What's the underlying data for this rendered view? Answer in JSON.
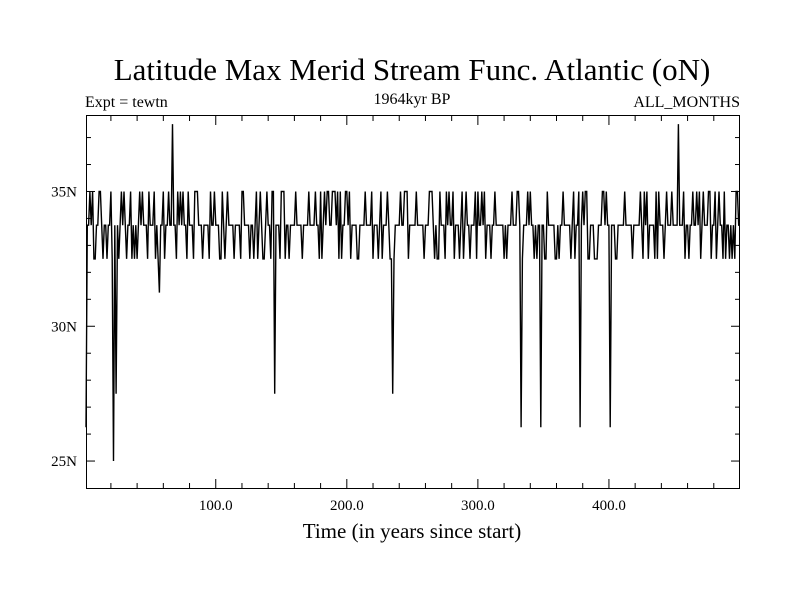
{
  "chart_data": {
    "type": "line",
    "title": "Latitude Max Merid Stream Func. Atlantic (oN)",
    "subtitle_left": "Expt = tewtn",
    "subtitle_center": "1964kyr BP",
    "subtitle_right": "ALL_MONTHS",
    "xlabel": "Time (in years since start)",
    "ylabel": "",
    "xlim": [
      1,
      500
    ],
    "ylim": [
      24,
      37.8
    ],
    "x_ticks": [
      {
        "value": 100,
        "label": "100.0"
      },
      {
        "value": 200,
        "label": "200.0"
      },
      {
        "value": 300,
        "label": "300.0"
      },
      {
        "value": 400,
        "label": "400.0"
      }
    ],
    "y_ticks": [
      {
        "value": 25,
        "label": "25N"
      },
      {
        "value": 30,
        "label": "30N"
      },
      {
        "value": 35,
        "label": "35N"
      }
    ],
    "baseline": 33.75,
    "levels": [
      32.5,
      33.75,
      35.0
    ],
    "events": [
      [
        1,
        26.25
      ],
      [
        4,
        35.0
      ],
      [
        8,
        32.5
      ],
      [
        12,
        35.0
      ],
      [
        17,
        32.5
      ],
      [
        22,
        25.0
      ],
      [
        24,
        27.5
      ],
      [
        26,
        32.5
      ],
      [
        30,
        35.0
      ],
      [
        36,
        32.5
      ],
      [
        42,
        35.0
      ],
      [
        48,
        32.5
      ],
      [
        53,
        35.0
      ],
      [
        57,
        31.25
      ],
      [
        61,
        32.5
      ],
      [
        64,
        35.0
      ],
      [
        67,
        37.5
      ],
      [
        70,
        32.5
      ],
      [
        73,
        35.0
      ],
      [
        78,
        32.5
      ],
      [
        84,
        35.0
      ],
      [
        90,
        32.5
      ],
      [
        96,
        35.0
      ],
      [
        103,
        32.5
      ],
      [
        109,
        35.0
      ],
      [
        114,
        32.5
      ],
      [
        120,
        35.0
      ],
      [
        126,
        32.5
      ],
      [
        131,
        35.0
      ],
      [
        137,
        32.5
      ],
      [
        142,
        32.5
      ],
      [
        145,
        27.5
      ],
      [
        150,
        35.0
      ],
      [
        156,
        32.5
      ],
      [
        161,
        35.0
      ],
      [
        166,
        32.5
      ],
      [
        171,
        35.0
      ],
      [
        176,
        35.0
      ],
      [
        181,
        32.5
      ],
      [
        186,
        35.0
      ],
      [
        191,
        35.0
      ],
      [
        196,
        32.5
      ],
      [
        202,
        35.0
      ],
      [
        208,
        32.5
      ],
      [
        214,
        35.0
      ],
      [
        220,
        32.5
      ],
      [
        226,
        35.0
      ],
      [
        233,
        32.5
      ],
      [
        235,
        27.5
      ],
      [
        241,
        35.0
      ],
      [
        247,
        32.5
      ],
      [
        253,
        35.0
      ],
      [
        259,
        32.5
      ],
      [
        264,
        35.0
      ],
      [
        270,
        32.5
      ],
      [
        276,
        35.0
      ],
      [
        282,
        32.5
      ],
      [
        288,
        35.0
      ],
      [
        294,
        32.5
      ],
      [
        300,
        35.0
      ],
      [
        306,
        32.5
      ],
      [
        313,
        35.0
      ],
      [
        320,
        32.5
      ],
      [
        326,
        35.0
      ],
      [
        333,
        26.25
      ],
      [
        338,
        35.0
      ],
      [
        343,
        32.5
      ],
      [
        348,
        26.25
      ],
      [
        353,
        35.0
      ],
      [
        359,
        32.5
      ],
      [
        365,
        35.0
      ],
      [
        371,
        32.5
      ],
      [
        378,
        26.25
      ],
      [
        383,
        35.0
      ],
      [
        389,
        32.5
      ],
      [
        395,
        35.0
      ],
      [
        401,
        26.25
      ],
      [
        406,
        32.5
      ],
      [
        412,
        35.0
      ],
      [
        418,
        32.5
      ],
      [
        424,
        35.0
      ],
      [
        430,
        32.5
      ],
      [
        436,
        35.0
      ],
      [
        442,
        32.5
      ],
      [
        448,
        35.0
      ],
      [
        453,
        37.5
      ],
      [
        458,
        32.5
      ],
      [
        464,
        35.0
      ],
      [
        470,
        32.5
      ],
      [
        476,
        35.0
      ],
      [
        482,
        32.5
      ],
      [
        488,
        35.0
      ],
      [
        494,
        32.5
      ],
      [
        498,
        35.0
      ]
    ]
  }
}
